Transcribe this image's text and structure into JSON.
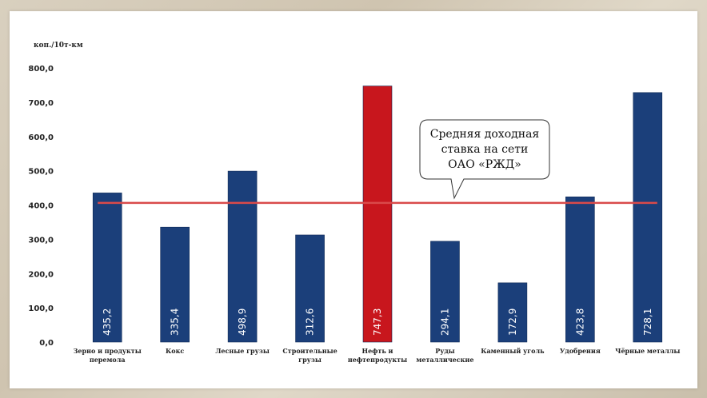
{
  "chart_data": {
    "type": "bar",
    "ylabel": "коп./10т-км",
    "ylim": [
      0,
      800
    ],
    "yticks": [
      "0,0",
      "100,0",
      "200,0",
      "300,0",
      "400,0",
      "500,0",
      "600,0",
      "700,0",
      "800,0"
    ],
    "grid": false,
    "categories": [
      [
        "Зерно и продукты",
        "перемола"
      ],
      [
        "Кокс"
      ],
      [
        "Лесные грузы"
      ],
      [
        "Строительные",
        "грузы"
      ],
      [
        "Нефть и",
        "нефтепродукты"
      ],
      [
        "Руды",
        "металлические"
      ],
      [
        "Каменный уголь"
      ],
      [
        "Удобрения"
      ],
      [
        "Чёрные металлы"
      ]
    ],
    "values": [
      435.2,
      335.4,
      498.9,
      312.6,
      747.3,
      294.1,
      172.9,
      423.8,
      728.1
    ],
    "value_labels": [
      "435,2",
      "335,4",
      "498,9",
      "312,6",
      "747,3",
      "294,1",
      "172,9",
      "423,8",
      "728,1"
    ],
    "highlight_index": 4,
    "colors": {
      "bar": "#1b3f7a",
      "highlight": "#c8161d",
      "reference_line": "#d94a4a"
    },
    "reference_line": {
      "value": 406,
      "label": [
        "Средняя доходная",
        "ставка на сети",
        "ОАО «РЖД»"
      ]
    }
  }
}
